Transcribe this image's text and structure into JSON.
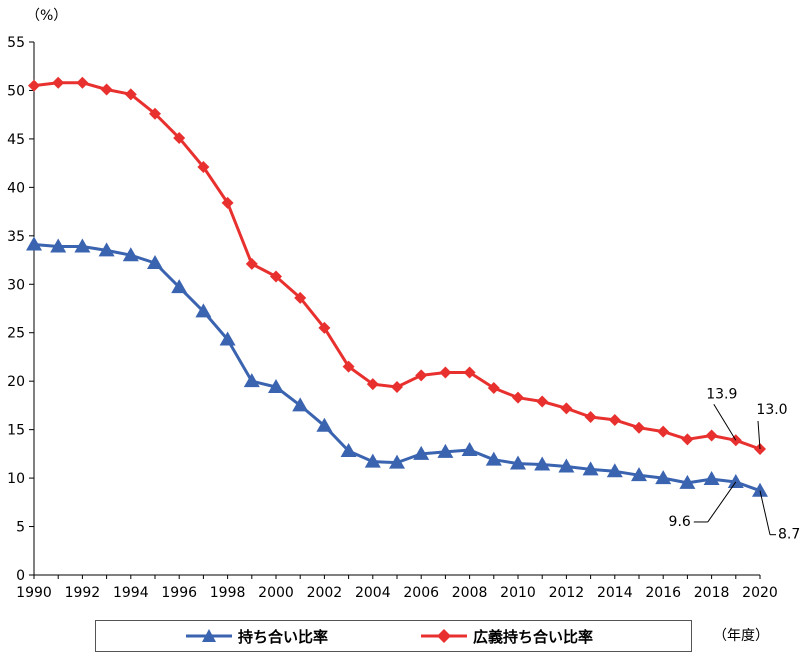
{
  "chart_data": {
    "type": "line",
    "y_unit_label": "（%）",
    "x_unit_label": "（年度）",
    "ylim": [
      0,
      55
    ],
    "yticks": [
      0,
      5,
      10,
      15,
      20,
      25,
      30,
      35,
      40,
      45,
      50,
      55
    ],
    "xticks": [
      "1990",
      "1992",
      "1994",
      "1996",
      "1998",
      "2000",
      "2002",
      "2004",
      "2006",
      "2008",
      "2010",
      "2012",
      "2014",
      "2016",
      "2018",
      "2020"
    ],
    "x": [
      1990,
      1991,
      1992,
      1993,
      1994,
      1995,
      1996,
      1997,
      1998,
      1999,
      2000,
      2001,
      2002,
      2003,
      2004,
      2005,
      2006,
      2007,
      2008,
      2009,
      2010,
      2011,
      2012,
      2013,
      2014,
      2015,
      2016,
      2017,
      2018,
      2019,
      2020
    ],
    "grid": false,
    "legend_placement": "bottom",
    "series": [
      {
        "name": "持ち合い比率",
        "color": "#3A63B0",
        "marker": "triangle",
        "values": [
          34.1,
          33.9,
          33.9,
          33.5,
          33.0,
          32.2,
          29.7,
          27.2,
          24.3,
          20.0,
          19.4,
          17.5,
          15.4,
          12.8,
          11.7,
          11.6,
          12.5,
          12.7,
          12.9,
          11.9,
          11.5,
          11.4,
          11.2,
          10.9,
          10.7,
          10.3,
          10.0,
          9.5,
          9.9,
          9.6,
          8.7
        ]
      },
      {
        "name": "広義持ち合い比率",
        "color": "#E8312F",
        "marker": "diamond",
        "values": [
          50.5,
          50.8,
          50.8,
          50.1,
          49.6,
          47.6,
          45.1,
          42.1,
          38.4,
          32.1,
          30.8,
          28.6,
          25.5,
          21.5,
          19.7,
          19.4,
          20.6,
          20.9,
          20.9,
          19.3,
          18.3,
          17.9,
          17.2,
          16.3,
          16.0,
          15.2,
          14.8,
          14.0,
          14.4,
          13.9,
          13.0
        ]
      }
    ],
    "annotations": [
      {
        "text": "13.9",
        "series": 1,
        "x": 2019
      },
      {
        "text": "13.0",
        "series": 1,
        "x": 2020
      },
      {
        "text": "9.6",
        "series": 0,
        "x": 2019
      },
      {
        "text": "8.7",
        "series": 0,
        "x": 2020
      }
    ]
  }
}
